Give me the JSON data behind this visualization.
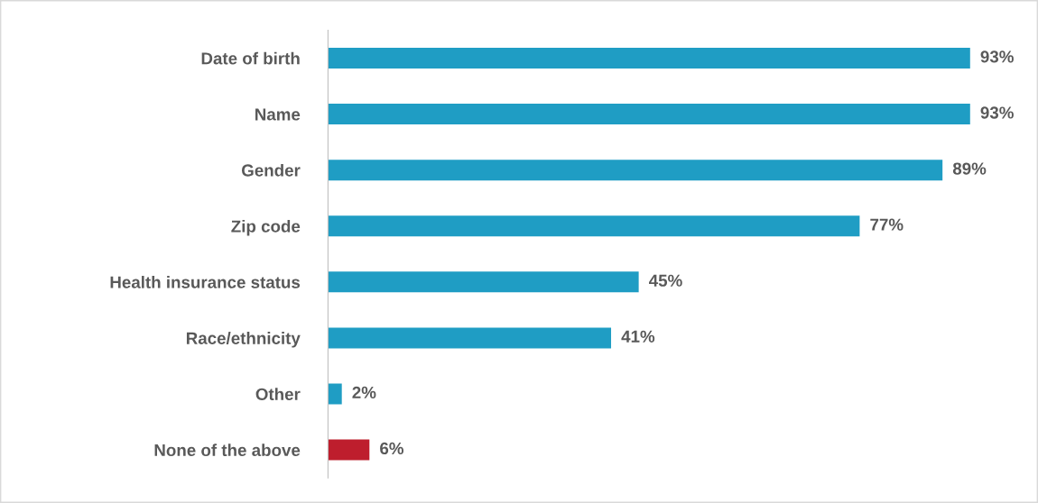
{
  "chart_data": {
    "type": "bar",
    "orientation": "horizontal",
    "categories": [
      "Date of birth",
      "Name",
      "Gender",
      "Zip code",
      "Health insurance status",
      "Race/ethnicity",
      "Other",
      "None of the above"
    ],
    "values": [
      93,
      93,
      89,
      77,
      45,
      41,
      2,
      6
    ],
    "colors": [
      "#1f9dc4",
      "#1f9dc4",
      "#1f9dc4",
      "#1f9dc4",
      "#1f9dc4",
      "#1f9dc4",
      "#1f9dc4",
      "#be1e2d"
    ],
    "value_labels": [
      "93%",
      "93%",
      "89%",
      "77%",
      "45%",
      "41%",
      "2%",
      "6%"
    ],
    "grid": false,
    "legend": false
  }
}
